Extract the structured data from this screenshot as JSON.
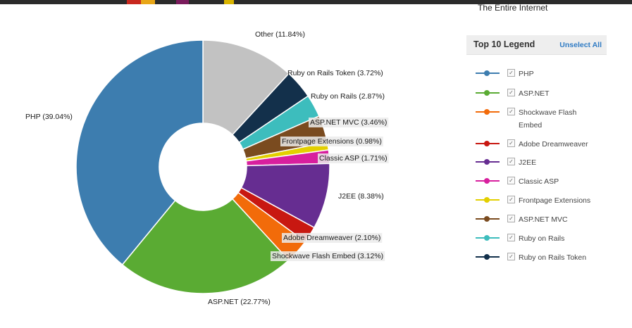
{
  "subtitle": "The Entire Internet",
  "legend": {
    "title": "Top 10 Legend",
    "unselect_label": "Unselect All",
    "items": [
      {
        "label": "PHP",
        "color": "#3d7daf",
        "checked": "✓"
      },
      {
        "label": "ASP.NET",
        "color": "#5aab33",
        "checked": "✓"
      },
      {
        "label": "Shockwave Flash Embed",
        "color": "#f26b0a",
        "checked": "✓"
      },
      {
        "label": "Adobe Dreamweaver",
        "color": "#c81811",
        "checked": "✓"
      },
      {
        "label": "J2EE",
        "color": "#662d91",
        "checked": "✓"
      },
      {
        "label": "Classic ASP",
        "color": "#d81f9e",
        "checked": "✓"
      },
      {
        "label": "Frontpage Extensions",
        "color": "#e3cf00",
        "checked": "✓"
      },
      {
        "label": "ASP.NET MVC",
        "color": "#7a4b1f",
        "checked": "✓"
      },
      {
        "label": "Ruby on Rails",
        "color": "#3dbdbd",
        "checked": "✓"
      },
      {
        "label": "Ruby on Rails Token",
        "color": "#13304b",
        "checked": "✓"
      }
    ]
  },
  "chart_data": {
    "type": "pie",
    "donut": true,
    "title": "",
    "start": "12 o'clock, clockwise",
    "slices": [
      {
        "name": "Other",
        "value": 11.84,
        "label": "Other (11.84%)",
        "color": "#c2c2c2"
      },
      {
        "name": "Ruby on Rails Token",
        "value": 3.72,
        "label": "Ruby on Rails Token (3.72%)",
        "color": "#13304b"
      },
      {
        "name": "Ruby on Rails",
        "value": 2.87,
        "label": "Ruby on Rails (2.87%)",
        "color": "#3dbdbd"
      },
      {
        "name": "ASP.NET MVC",
        "value": 3.46,
        "label": "ASP.NET MVC (3.46%)",
        "color": "#7a4b1f"
      },
      {
        "name": "Frontpage Extensions",
        "value": 0.98,
        "label": "Frontpage Extensions (0.98%)",
        "color": "#e3cf00"
      },
      {
        "name": "Classic ASP",
        "value": 1.71,
        "label": "Classic ASP (1.71%)",
        "color": "#d81f9e"
      },
      {
        "name": "J2EE",
        "value": 8.38,
        "label": "J2EE (8.38%)",
        "color": "#662d91"
      },
      {
        "name": "Adobe Dreamweaver",
        "value": 2.1,
        "label": "Adobe Dreamweaver (2.10%)",
        "color": "#c81811"
      },
      {
        "name": "Shockwave Flash Embed",
        "value": 3.12,
        "label": "Shockwave Flash Embed (3.12%)",
        "color": "#f26b0a"
      },
      {
        "name": "ASP.NET",
        "value": 22.77,
        "label": "ASP.NET (22.77%)",
        "color": "#5aab33"
      },
      {
        "name": "PHP",
        "value": 39.04,
        "label": "PHP (39.04%)",
        "color": "#3d7daf"
      }
    ]
  }
}
